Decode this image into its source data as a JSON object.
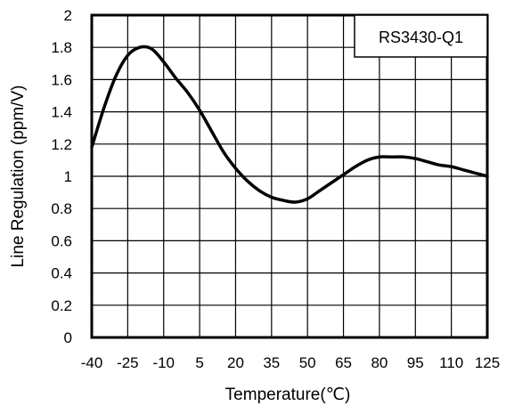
{
  "chart_data": {
    "type": "line",
    "xlabel": "Temperature(℃)",
    "ylabel": "Line Regulation (ppm/V)",
    "xlim": [
      -40,
      125
    ],
    "ylim": [
      0,
      2
    ],
    "x_ticks": [
      -40,
      -25,
      -10,
      5,
      20,
      35,
      50,
      65,
      80,
      95,
      110,
      125
    ],
    "y_ticks": [
      0,
      0.2,
      0.4,
      0.6,
      0.8,
      1,
      1.2,
      1.4,
      1.6,
      1.8,
      2
    ],
    "x_tick_labels": [
      "-40",
      "-25",
      "-10",
      "5",
      "20",
      "35",
      "50",
      "65",
      "80",
      "95",
      "110",
      "125"
    ],
    "y_tick_labels": [
      "0",
      "0.2",
      "0.4",
      "0.6",
      "0.8",
      "1",
      "1.2",
      "1.4",
      "1.6",
      "1.8",
      "2"
    ],
    "grid": true,
    "legend": {
      "placement": "top-right",
      "label": "RS3430-Q1"
    },
    "series": [
      {
        "name": "RS3430-Q1",
        "color": "#000000",
        "x": [
          -40,
          -35,
          -30,
          -25,
          -20,
          -15,
          -10,
          -5,
          0,
          5,
          10,
          15,
          20,
          25,
          30,
          35,
          40,
          45,
          50,
          55,
          60,
          65,
          70,
          75,
          80,
          85,
          90,
          95,
          100,
          105,
          110,
          115,
          120,
          125
        ],
        "y": [
          1.18,
          1.42,
          1.62,
          1.75,
          1.8,
          1.79,
          1.71,
          1.61,
          1.52,
          1.41,
          1.28,
          1.15,
          1.05,
          0.97,
          0.91,
          0.87,
          0.85,
          0.84,
          0.86,
          0.91,
          0.96,
          1.01,
          1.06,
          1.1,
          1.12,
          1.12,
          1.12,
          1.11,
          1.09,
          1.07,
          1.06,
          1.04,
          1.02,
          1.0
        ]
      }
    ]
  }
}
